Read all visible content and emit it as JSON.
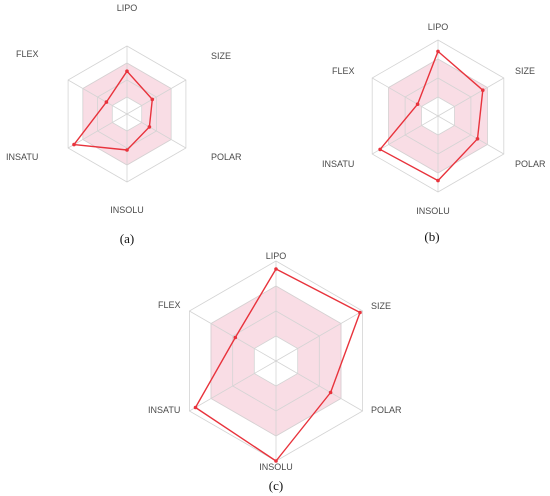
{
  "colors": {
    "grid": "#d4d4d4",
    "band_fill": "#f9dde5",
    "band_stroke": "#f0a8bb",
    "series": "#e8333c"
  },
  "chart_data": [
    {
      "type": "radar",
      "panel_label": "(a)",
      "axes": [
        "LIPO",
        "SIZE",
        "POLAR",
        "INSOLU",
        "INSATU",
        "FLEX"
      ],
      "grid_levels": 4,
      "range": [
        0,
        1
      ],
      "optimal_band": [
        0.25,
        0.75
      ],
      "values": [
        0.63,
        0.43,
        0.38,
        0.53,
        0.9,
        0.35
      ]
    },
    {
      "type": "radar",
      "panel_label": "(b)",
      "axes": [
        "LIPO",
        "SIZE",
        "POLAR",
        "INSOLU",
        "INSATU",
        "FLEX"
      ],
      "grid_levels": 4,
      "range": [
        0,
        1
      ],
      "optimal_band": [
        0.25,
        0.75
      ],
      "values": [
        0.85,
        0.68,
        0.6,
        0.85,
        0.88,
        0.31
      ]
    },
    {
      "type": "radar",
      "panel_label": "(c)",
      "axes": [
        "LIPO",
        "SIZE",
        "POLAR",
        "INSOLU",
        "INSATU",
        "FLEX"
      ],
      "grid_levels": 4,
      "range": [
        0,
        1
      ],
      "optimal_band": [
        0.25,
        0.75
      ],
      "values": [
        0.92,
        0.97,
        0.63,
        1.0,
        0.93,
        0.47
      ]
    }
  ]
}
